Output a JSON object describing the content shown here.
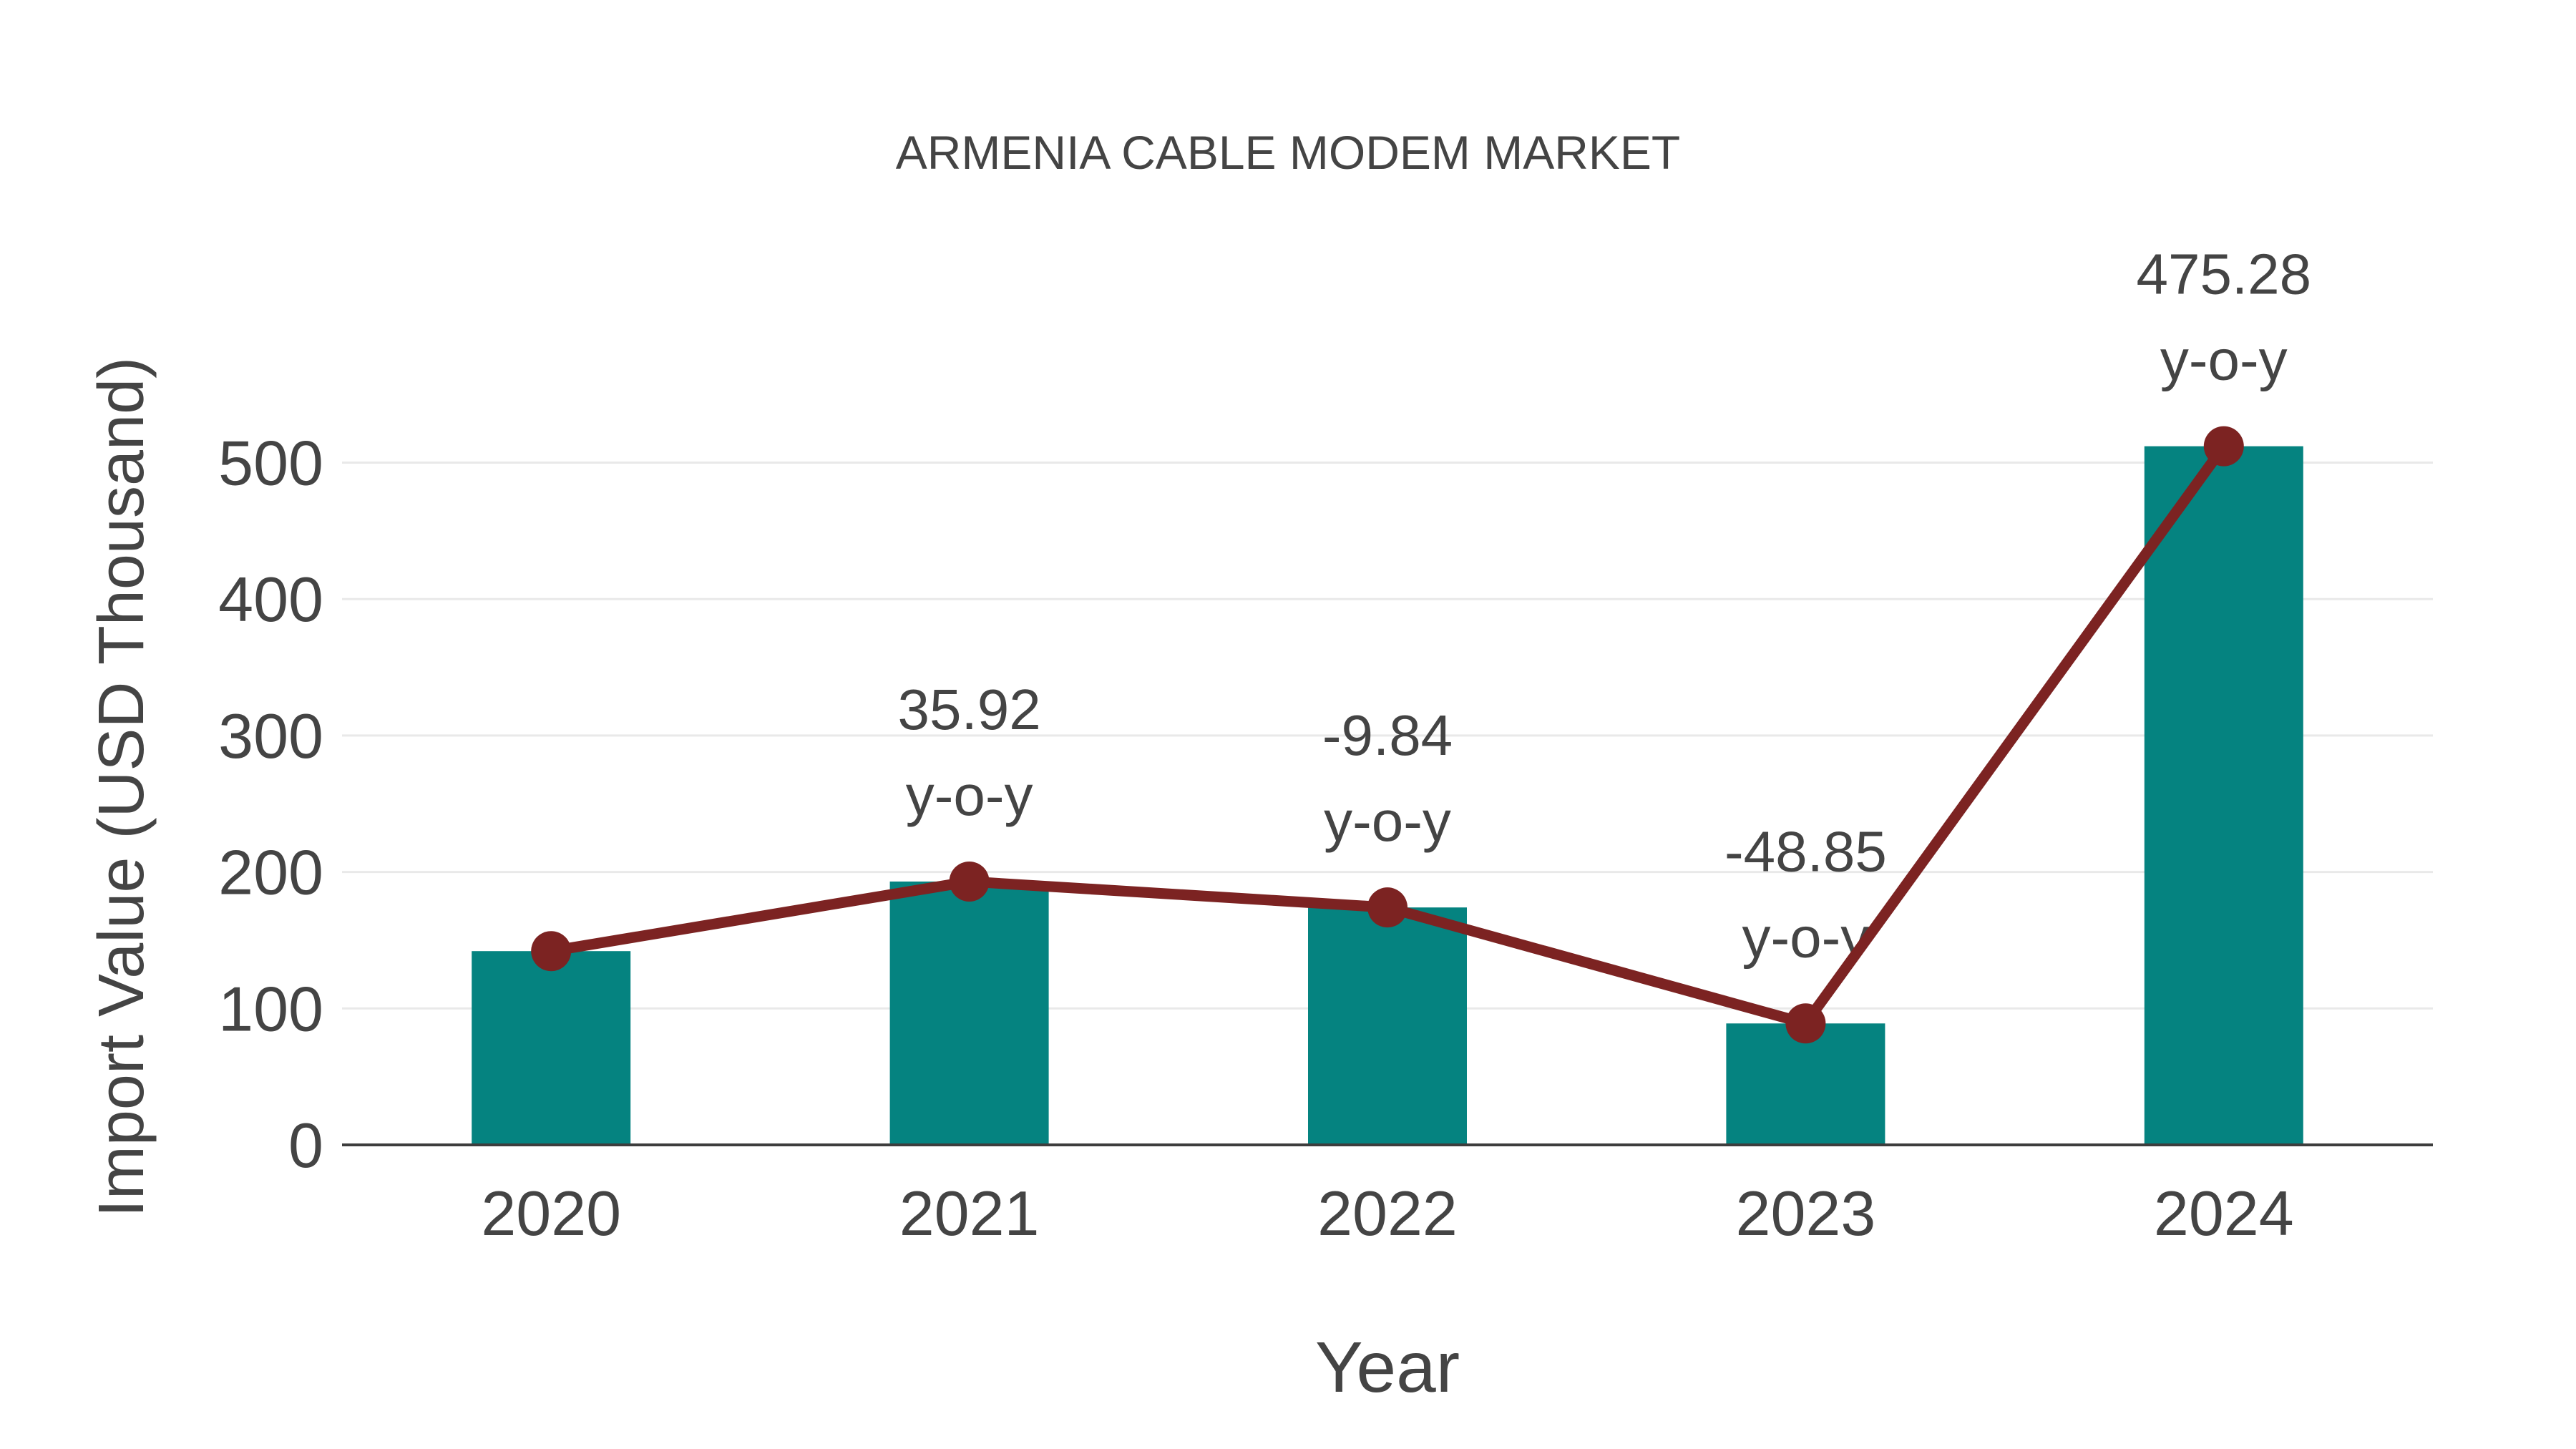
{
  "title": "ARMENIA CABLE MODEM MARKET",
  "chart_data": {
    "type": "bar",
    "title": "ARMENIA CABLE MODEM MARKET",
    "categories": [
      "2020",
      "2021",
      "2022",
      "2023",
      "2024"
    ],
    "series": [
      {
        "name": "Import Value bars",
        "type": "bar",
        "values": [
          142,
          193,
          174,
          89,
          512
        ]
      },
      {
        "name": "Import Value trend line",
        "type": "line",
        "values": [
          142,
          193,
          174,
          89,
          512
        ]
      }
    ],
    "annotations": [
      {
        "category": "2021",
        "lines": [
          "35.92",
          "y-o-y"
        ]
      },
      {
        "category": "2022",
        "lines": [
          "-9.84",
          "y-o-y"
        ]
      },
      {
        "category": "2023",
        "lines": [
          "-48.85",
          "y-o-y"
        ]
      },
      {
        "category": "2024",
        "lines": [
          "475.28",
          "y-o-y"
        ]
      }
    ],
    "xlabel": "Year",
    "ylabel": "Import Value (USD Thousand)",
    "yticks": [
      0,
      100,
      200,
      300,
      400,
      500
    ],
    "ylim": [
      0,
      545
    ],
    "grid": "horizontal",
    "legend_position": "none",
    "colors": {
      "bar": "#058380",
      "line": "#7c2322",
      "marker": "#7c2322",
      "text": "#444444",
      "grid": "#e9e9e9",
      "axis": "#3d3d3d",
      "background": "#ffffff"
    }
  }
}
